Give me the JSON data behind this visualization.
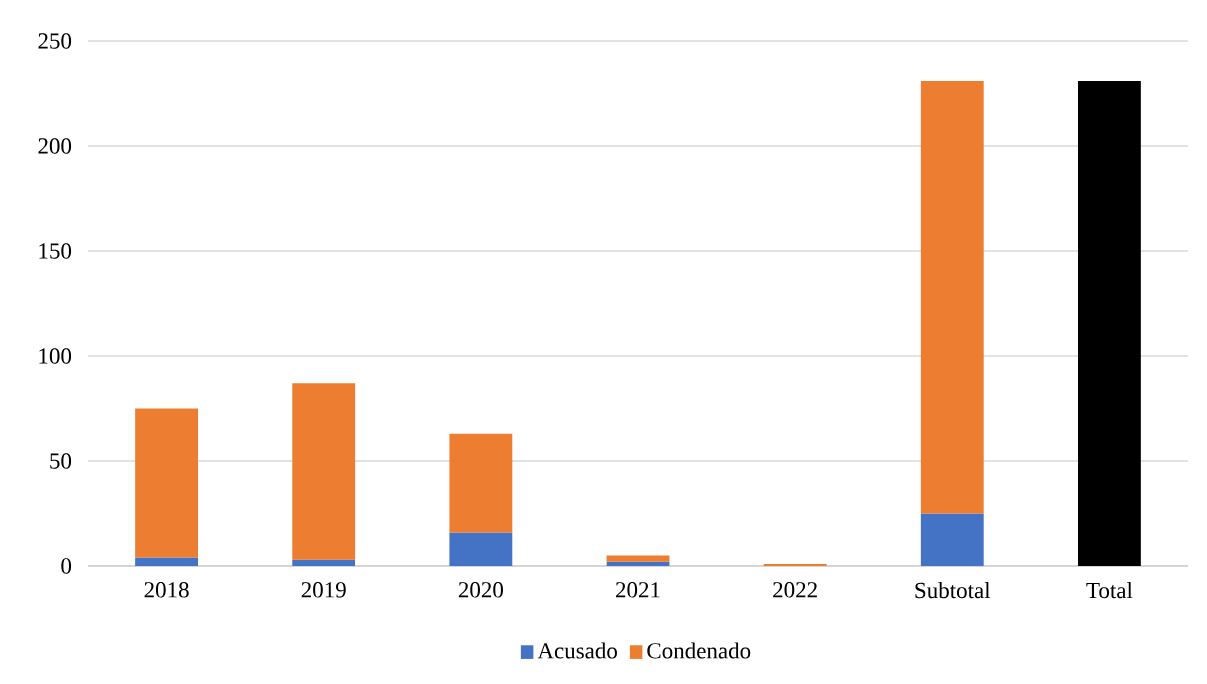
{
  "chart_data": {
    "type": "bar",
    "stacked": true,
    "categories": [
      "2018",
      "2019",
      "2020",
      "2021",
      "2022",
      "Subtotal",
      "Total"
    ],
    "series": [
      {
        "name": "Acusado",
        "color": "#4472c4",
        "values": [
          4,
          3,
          16,
          2,
          0,
          25,
          null
        ]
      },
      {
        "name": "Condenado",
        "color": "#ed7d31",
        "values": [
          71,
          84,
          47,
          3,
          1,
          206,
          null
        ]
      },
      {
        "color": "#000000",
        "values": [
          null,
          null,
          null,
          null,
          null,
          null,
          231
        ]
      }
    ],
    "ylim": [
      0,
      250
    ],
    "yticks": [
      0,
      50,
      100,
      150,
      200,
      250
    ],
    "grid": "y",
    "legend": "bottom"
  }
}
